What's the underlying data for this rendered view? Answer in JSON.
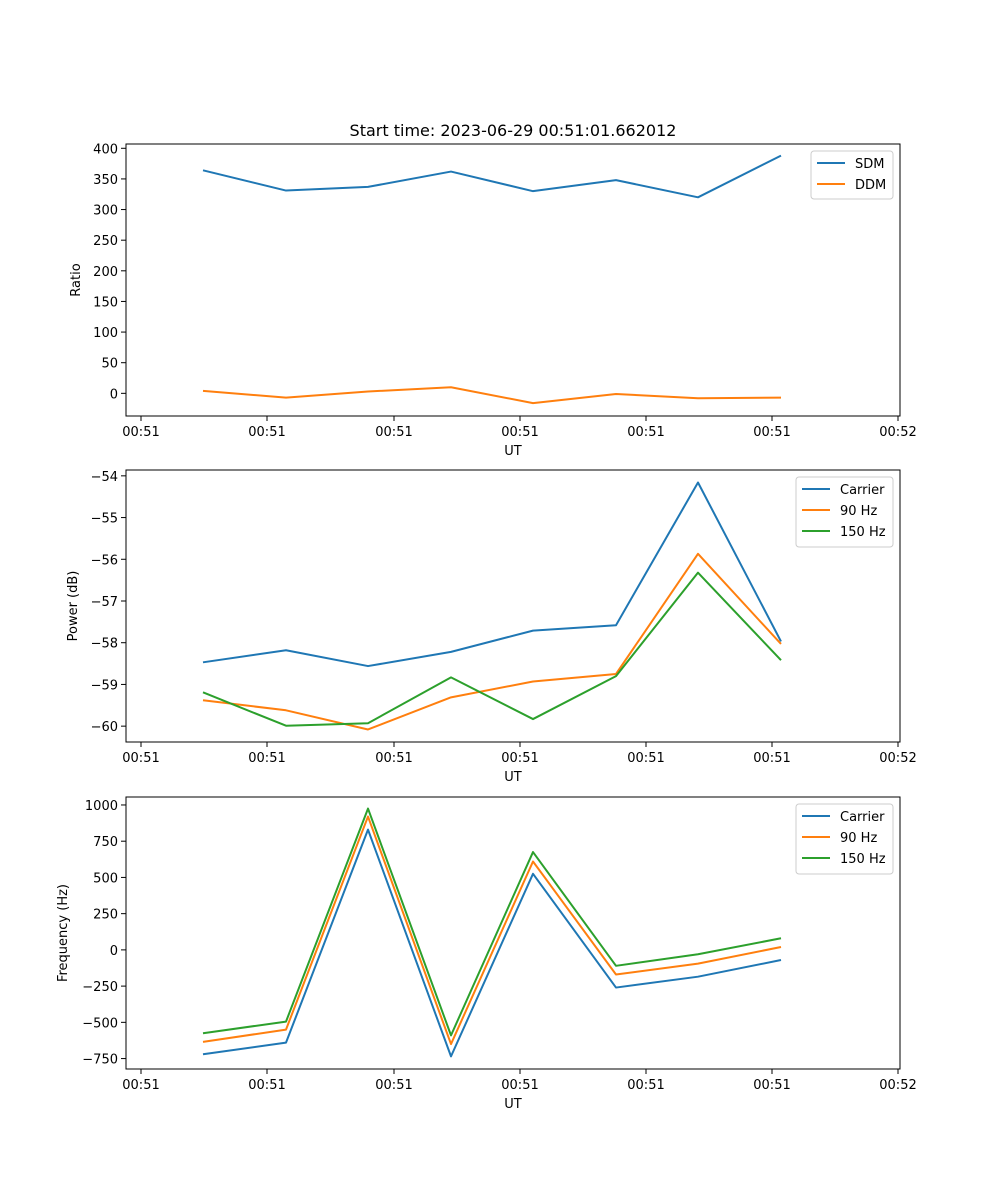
{
  "title": "Start time: 2023-06-29 00:51:01.662012",
  "chart_data": [
    {
      "type": "line",
      "title": "Start time: 2023-06-29 00:51:01.662012",
      "xlabel": "UT",
      "ylabel": "Ratio",
      "x": [
        1,
        2,
        3,
        4,
        5,
        6,
        7,
        8
      ],
      "xlim": [
        0.3,
        9.2
      ],
      "xticks": [
        0.5,
        2,
        3.5,
        5,
        6.5,
        8,
        9.5
      ],
      "xticklabels": [
        "00:51",
        "00:51",
        "00:51",
        "00:51",
        "00:51",
        "00:51",
        "00:51"
      ],
      "xticklabels_extra": "00:52",
      "ylim": [
        -37,
        407
      ],
      "yticks": [
        0,
        50,
        100,
        150,
        200,
        250,
        300,
        350,
        400
      ],
      "ytick_labels": [
        "0",
        "50",
        "100",
        "150",
        "200",
        "250",
        "300",
        "350",
        "400"
      ],
      "legend": "top-right",
      "grid": false,
      "series": [
        {
          "name": "SDM",
          "color": "#1f77b4",
          "values": [
            364,
            331,
            337,
            362,
            330,
            348,
            320,
            388
          ]
        },
        {
          "name": "DDM",
          "color": "#ff7f0e",
          "values": [
            4,
            -7,
            3,
            10,
            -16,
            -1,
            -8,
            -7
          ]
        }
      ]
    },
    {
      "type": "line",
      "xlabel": "UT",
      "ylabel": "Power (dB)",
      "x": [
        1,
        2,
        3,
        4,
        5,
        6,
        7,
        8
      ],
      "ylim": [
        -60.38,
        -53.86
      ],
      "yticks": [
        -60,
        -59,
        -58,
        -57,
        -56,
        -55,
        -54
      ],
      "ytick_labels": [
        "−60",
        "−59",
        "−58",
        "−57",
        "−56",
        "−55",
        "−54"
      ],
      "legend": "top-right",
      "grid": false,
      "series": [
        {
          "name": "Carrier",
          "color": "#1f77b4",
          "values": [
            -58.47,
            -58.18,
            -58.56,
            -58.22,
            -57.71,
            -57.58,
            -54.16,
            -57.97
          ]
        },
        {
          "name": "90 Hz",
          "color": "#ff7f0e",
          "values": [
            -59.38,
            -59.62,
            -60.08,
            -59.31,
            -58.93,
            -58.75,
            -55.87,
            -58.03
          ]
        },
        {
          "name": "150 Hz",
          "color": "#2ca02c",
          "values": [
            -59.19,
            -59.99,
            -59.93,
            -58.83,
            -59.83,
            -58.8,
            -56.32,
            -58.42
          ]
        }
      ]
    },
    {
      "type": "line",
      "xlabel": "UT",
      "ylabel": "Frequency (Hz)",
      "x": [
        1,
        2,
        3,
        4,
        5,
        6,
        7,
        8
      ],
      "ylim": [
        -822,
        1055
      ],
      "yticks": [
        -750,
        -500,
        -250,
        0,
        250,
        500,
        750,
        1000
      ],
      "ytick_labels": [
        "−750",
        "−500",
        "−250",
        "0",
        "250",
        "500",
        "750",
        "1000"
      ],
      "legend": "top-right",
      "grid": false,
      "series": [
        {
          "name": "Carrier",
          "color": "#1f77b4",
          "values": [
            -720,
            -640,
            830,
            -735,
            525,
            -260,
            -185,
            -70
          ]
        },
        {
          "name": "90 Hz",
          "color": "#ff7f0e",
          "values": [
            -635,
            -550,
            920,
            -650,
            610,
            -170,
            -95,
            20
          ]
        },
        {
          "name": "150 Hz",
          "color": "#2ca02c",
          "values": [
            -575,
            -495,
            975,
            -590,
            675,
            -110,
            -30,
            80
          ]
        }
      ]
    }
  ]
}
